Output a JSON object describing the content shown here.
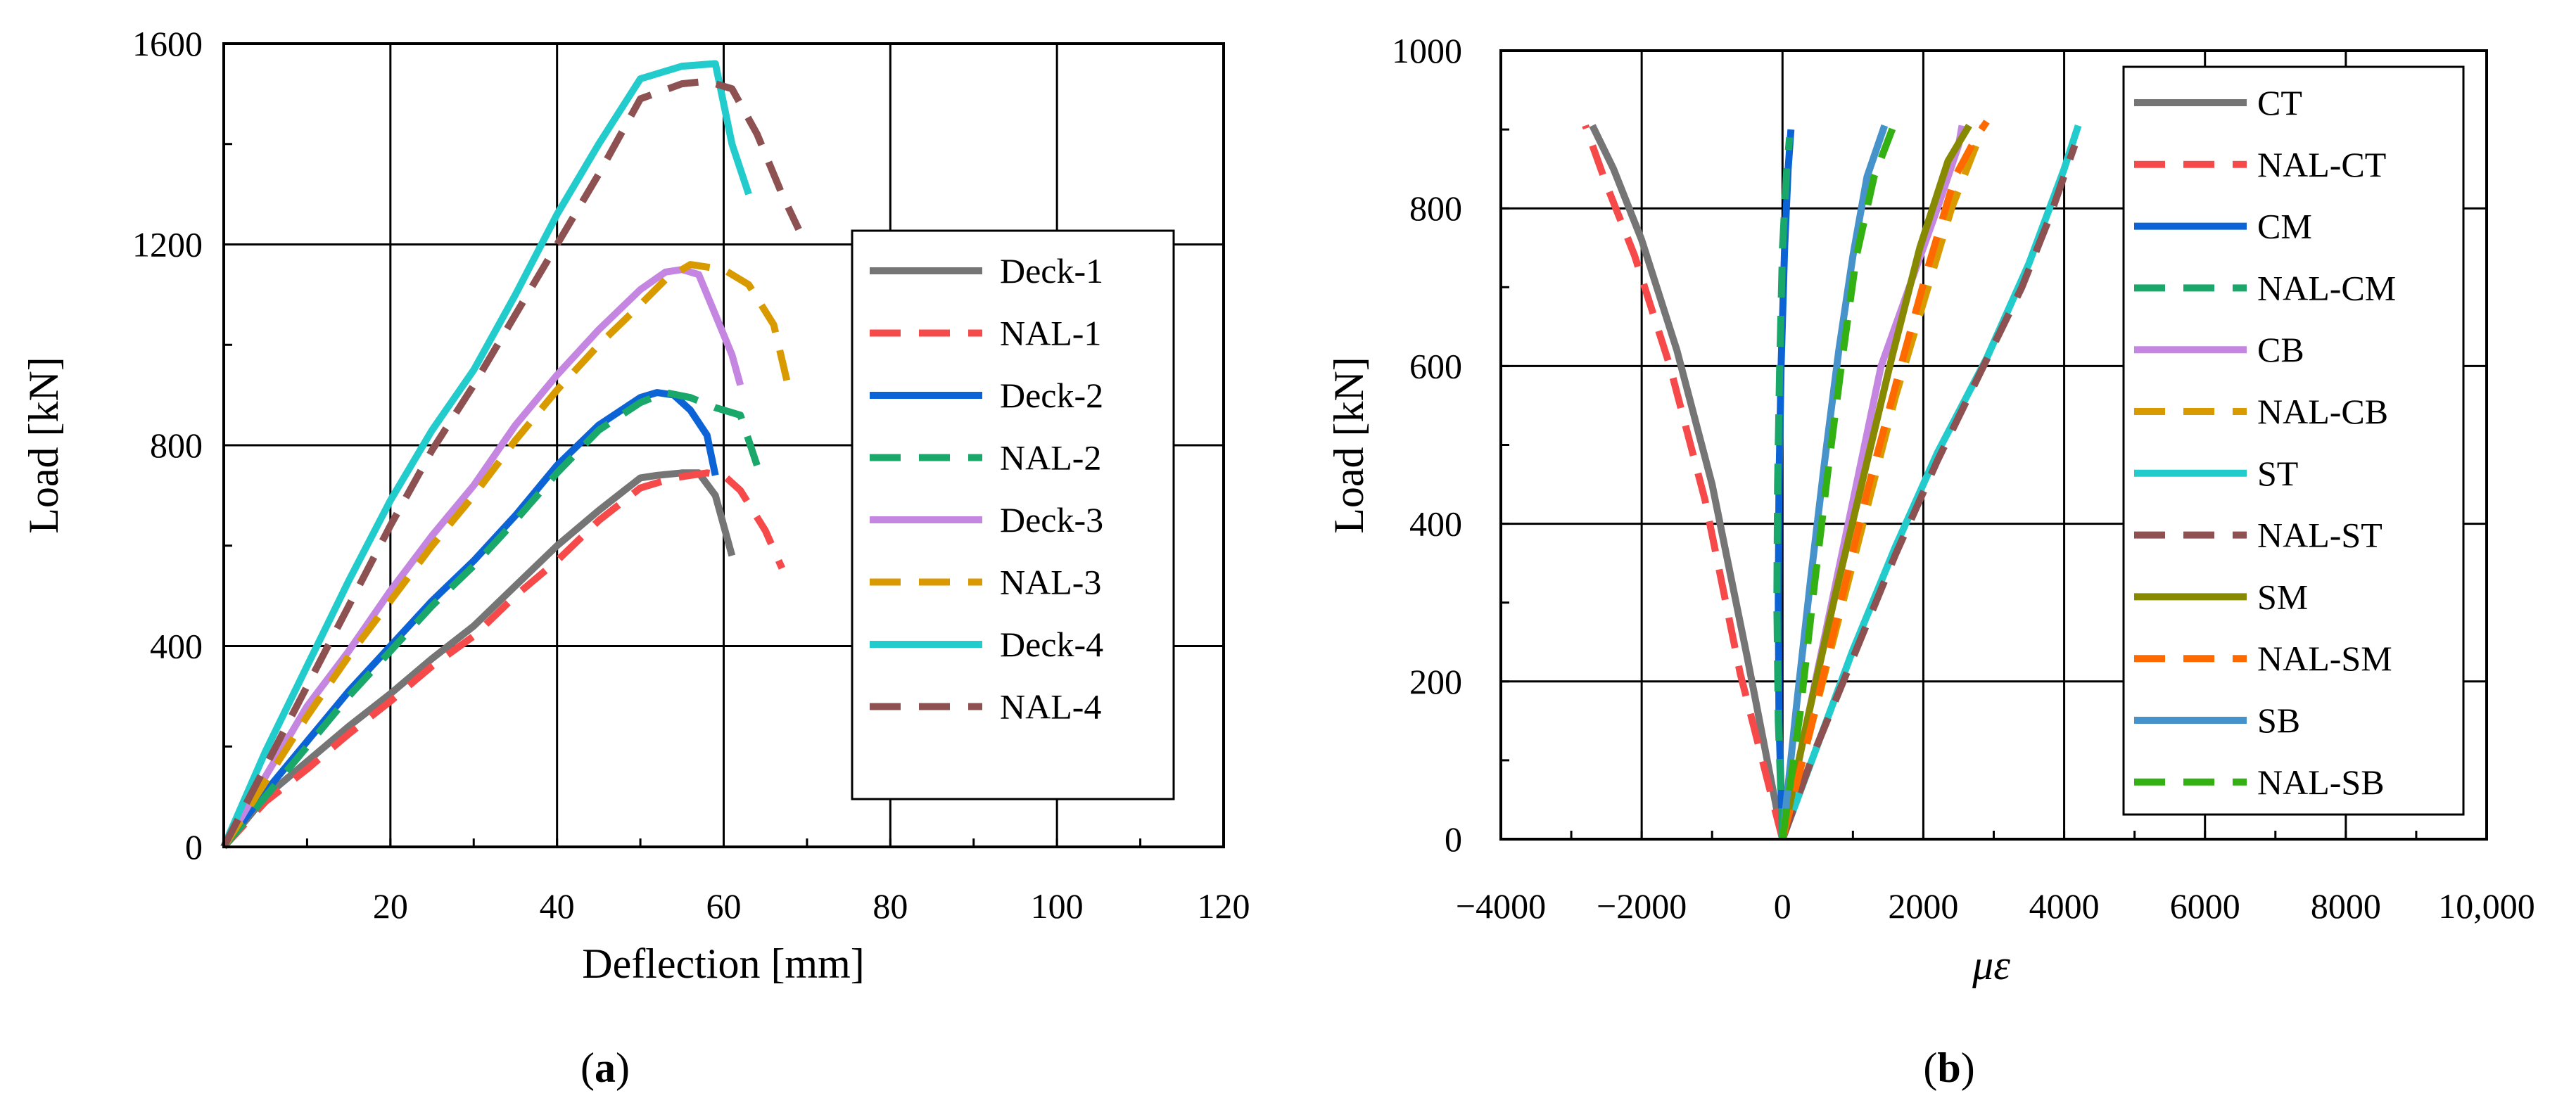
{
  "chart_data": [
    {
      "type": "line",
      "panel": "a",
      "caption": "a",
      "xlabel": "Deflection [mm]",
      "ylabel": "Load [kN]",
      "xlim": [
        0,
        120
      ],
      "ylim": [
        0,
        1600
      ],
      "xticks": [
        20,
        40,
        60,
        80,
        100,
        120
      ],
      "yticks": [
        0,
        400,
        800,
        1200,
        1600
      ],
      "grid": true,
      "legend_position": "right",
      "series": [
        {
          "name": "Deck-1",
          "color": "#757575",
          "dash": false,
          "x": [
            0,
            5,
            10,
            15,
            20,
            25,
            30,
            35,
            40,
            45,
            50,
            52,
            55,
            57,
            59,
            61
          ],
          "y": [
            0,
            100,
            170,
            240,
            305,
            375,
            440,
            520,
            600,
            670,
            735,
            740,
            745,
            745,
            700,
            580
          ]
        },
        {
          "name": "NAL-1",
          "color": "#f64a4a",
          "dash": true,
          "x": [
            0,
            5,
            10,
            15,
            20,
            25,
            30,
            35,
            40,
            45,
            50,
            54,
            58,
            60,
            62,
            65,
            67
          ],
          "y": [
            0,
            90,
            155,
            225,
            290,
            360,
            420,
            500,
            570,
            650,
            715,
            735,
            745,
            740,
            710,
            630,
            555
          ]
        },
        {
          "name": "Deck-2",
          "color": "#0b63d6",
          "dash": false,
          "x": [
            0,
            5,
            10,
            15,
            20,
            25,
            30,
            35,
            40,
            45,
            50,
            52,
            54,
            56,
            58,
            59
          ],
          "y": [
            0,
            110,
            210,
            310,
            400,
            490,
            570,
            660,
            760,
            840,
            895,
            905,
            900,
            870,
            820,
            740
          ]
        },
        {
          "name": "NAL-2",
          "color": "#19a86a",
          "dash": true,
          "x": [
            0,
            5,
            10,
            15,
            20,
            25,
            30,
            35,
            40,
            45,
            50,
            53,
            56,
            59,
            62,
            64
          ],
          "y": [
            0,
            100,
            200,
            300,
            390,
            480,
            560,
            650,
            745,
            830,
            885,
            905,
            895,
            875,
            860,
            760
          ]
        },
        {
          "name": "Deck-3",
          "color": "#c486e0",
          "dash": false,
          "x": [
            0,
            5,
            10,
            15,
            20,
            25,
            30,
            35,
            40,
            45,
            50,
            53,
            55,
            57,
            59,
            61,
            62
          ],
          "y": [
            0,
            140,
            280,
            390,
            510,
            620,
            720,
            840,
            940,
            1030,
            1110,
            1145,
            1150,
            1140,
            1060,
            980,
            920
          ]
        },
        {
          "name": "NAL-3",
          "color": "#d99a00",
          "dash": true,
          "x": [
            0,
            5,
            10,
            15,
            20,
            25,
            30,
            35,
            40,
            45,
            50,
            53,
            56,
            60,
            63,
            66,
            68
          ],
          "y": [
            0,
            130,
            260,
            380,
            490,
            600,
            700,
            810,
            910,
            1000,
            1080,
            1130,
            1160,
            1150,
            1120,
            1040,
            900
          ]
        },
        {
          "name": "Deck-4",
          "color": "#23cccc",
          "dash": false,
          "x": [
            0,
            5,
            10,
            15,
            20,
            25,
            30,
            35,
            40,
            45,
            50,
            55,
            59,
            61,
            63
          ],
          "y": [
            0,
            190,
            360,
            530,
            690,
            830,
            950,
            1100,
            1260,
            1400,
            1530,
            1555,
            1560,
            1400,
            1300
          ]
        },
        {
          "name": "NAL-4",
          "color": "#8d5151",
          "dash": true,
          "x": [
            0,
            5,
            10,
            15,
            20,
            25,
            30,
            35,
            40,
            45,
            50,
            55,
            58,
            61,
            64,
            67,
            69
          ],
          "y": [
            0,
            160,
            320,
            480,
            640,
            790,
            920,
            1060,
            1200,
            1340,
            1490,
            1520,
            1525,
            1510,
            1420,
            1300,
            1230
          ]
        }
      ]
    },
    {
      "type": "line",
      "panel": "b",
      "caption": "b",
      "xlabel": "με",
      "ylabel": "Load [kN]",
      "xlim": [
        -4000,
        10000
      ],
      "ylim": [
        0,
        1000
      ],
      "xticks": [
        -4000,
        -2000,
        0,
        2000,
        4000,
        6000,
        8000,
        10000
      ],
      "xtick_labels": [
        "−4000",
        "−2000",
        "0",
        "2000",
        "4000",
        "6000",
        "8000",
        "10,000"
      ],
      "yticks": [
        0,
        200,
        400,
        600,
        800,
        1000
      ],
      "grid": true,
      "legend_position": "top-right",
      "series": [
        {
          "name": "CT",
          "color": "#757575",
          "dash": false,
          "x": [
            0,
            -500,
            -1000,
            -1500,
            -2000,
            -2400,
            -2700
          ],
          "y": [
            0,
            230,
            450,
            620,
            760,
            850,
            905
          ]
        },
        {
          "name": "NAL-CT",
          "color": "#f64a4a",
          "dash": true,
          "x": [
            0,
            -600,
            -1100,
            -1600,
            -2100,
            -2500,
            -2800
          ],
          "y": [
            0,
            210,
            430,
            600,
            740,
            830,
            905
          ]
        },
        {
          "name": "CM",
          "color": "#0b63d6",
          "dash": false,
          "x": [
            0,
            -50,
            -60,
            -50,
            -20,
            30,
            80,
            120
          ],
          "y": [
            0,
            150,
            300,
            450,
            600,
            750,
            850,
            900
          ]
        },
        {
          "name": "NAL-CM",
          "color": "#19a86a",
          "dash": true,
          "x": [
            0,
            -60,
            -80,
            -70,
            -40,
            0,
            60,
            100
          ],
          "y": [
            0,
            150,
            300,
            450,
            600,
            750,
            850,
            890
          ]
        },
        {
          "name": "CB",
          "color": "#c486e0",
          "dash": false,
          "x": [
            0,
            350,
            700,
            1050,
            1400,
            1800,
            2200,
            2500,
            2550
          ],
          "y": [
            0,
            150,
            300,
            450,
            600,
            700,
            800,
            880,
            905
          ]
        },
        {
          "name": "NAL-CB",
          "color": "#d99a00",
          "dash": true,
          "x": [
            0,
            400,
            800,
            1200,
            1600,
            2000,
            2400,
            2750,
            2850
          ],
          "y": [
            0,
            140,
            280,
            420,
            560,
            680,
            800,
            880,
            905
          ]
        },
        {
          "name": "ST",
          "color": "#23cccc",
          "dash": false,
          "x": [
            0,
            500,
            1000,
            1600,
            2200,
            2900,
            3500,
            4000,
            4200
          ],
          "y": [
            0,
            120,
            240,
            370,
            490,
            610,
            730,
            850,
            905
          ]
        },
        {
          "name": "NAL-ST",
          "color": "#8d5151",
          "dash": true,
          "x": [
            0,
            450,
            1000,
            1600,
            2200,
            2800,
            3400,
            3800,
            4150
          ],
          "y": [
            0,
            110,
            230,
            360,
            480,
            590,
            700,
            790,
            880
          ]
        },
        {
          "name": "SM",
          "color": "#878a00",
          "dash": false,
          "x": [
            0,
            350,
            750,
            1150,
            1550,
            1950,
            2350,
            2650
          ],
          "y": [
            0,
            150,
            310,
            460,
            610,
            750,
            860,
            905
          ]
        },
        {
          "name": "NAL-SM",
          "color": "#ff6a00",
          "dash": true,
          "x": [
            0,
            400,
            800,
            1200,
            1650,
            2050,
            2450,
            2750,
            2900
          ],
          "y": [
            0,
            140,
            290,
            440,
            590,
            720,
            840,
            890,
            910
          ]
        },
        {
          "name": "SB",
          "color": "#4693cc",
          "dash": false,
          "x": [
            0,
            200,
            400,
            600,
            800,
            1000,
            1200,
            1450
          ],
          "y": [
            0,
            170,
            330,
            480,
            620,
            740,
            840,
            905
          ]
        },
        {
          "name": "NAL-SB",
          "color": "#33b012",
          "dash": true,
          "x": [
            0,
            250,
            450,
            650,
            850,
            1050,
            1300,
            1600
          ],
          "y": [
            0,
            160,
            320,
            470,
            610,
            740,
            840,
            910
          ]
        }
      ]
    }
  ]
}
